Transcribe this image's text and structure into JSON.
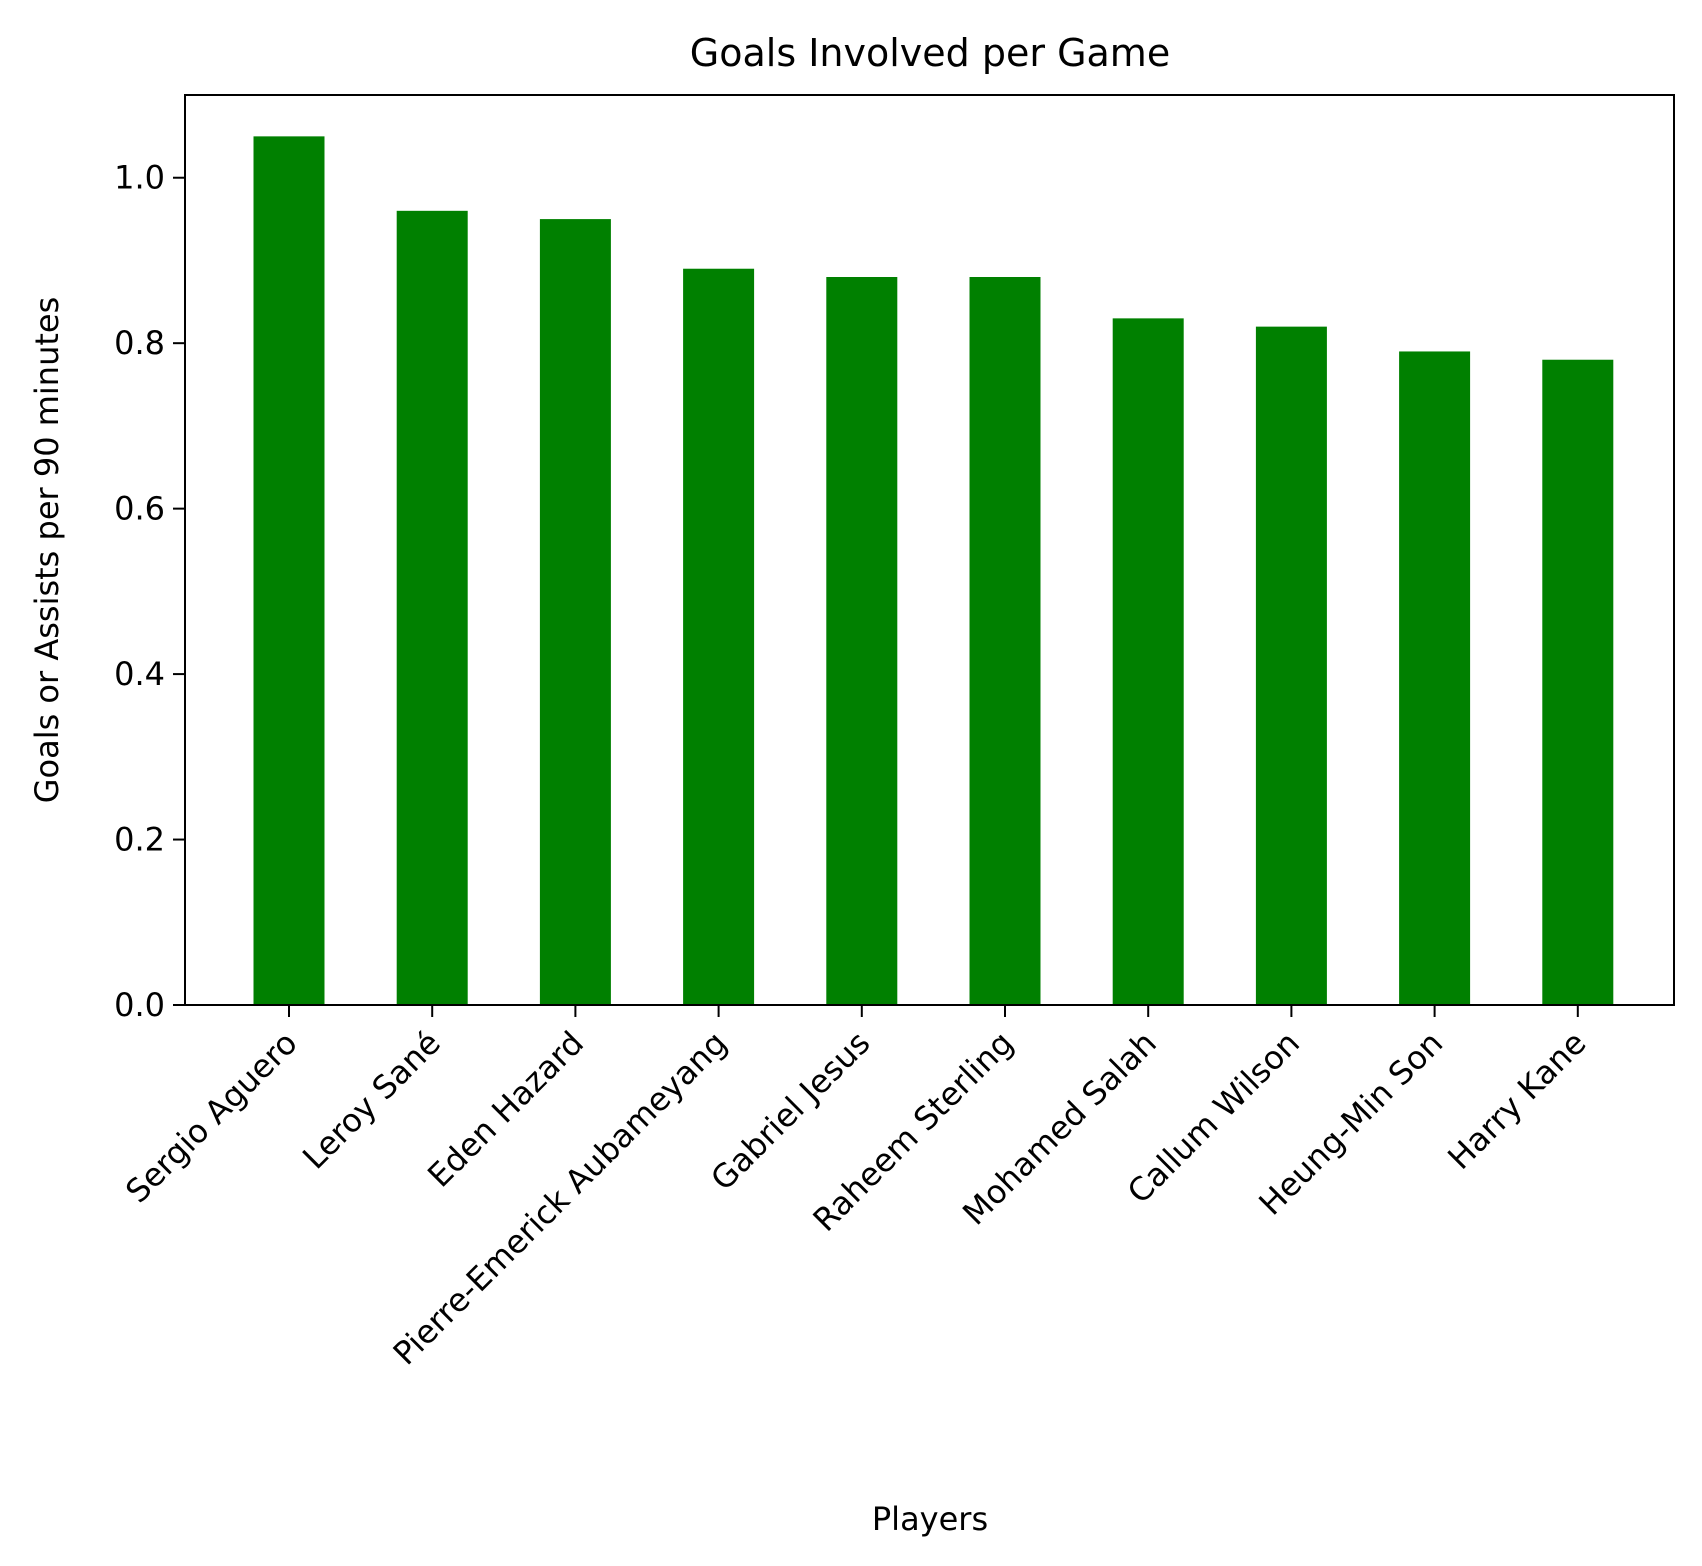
{
  "chart_data": {
    "type": "bar",
    "title": "Goals Involved per Game",
    "xlabel": "Players",
    "ylabel": "Goals or Assists per 90 minutes",
    "categories": [
      "Sergio Aguero",
      "Leroy Sané",
      "Eden Hazard",
      "Pierre-Emerick Aubameyang",
      "Gabriel Jesus",
      "Raheem Sterling",
      "Mohamed Salah",
      "Callum Wilson",
      "Heung-Min Son",
      "Harry Kane"
    ],
    "values": [
      1.05,
      0.96,
      0.95,
      0.89,
      0.88,
      0.88,
      0.83,
      0.82,
      0.79,
      0.78
    ],
    "ylim": [
      0,
      1.1
    ],
    "yticks": [
      0.0,
      0.2,
      0.4,
      0.6,
      0.8,
      1.0
    ],
    "ytick_labels": [
      "0.0",
      "0.2",
      "0.4",
      "0.6",
      "0.8",
      "1.0"
    ],
    "bar_color": "#008000",
    "grid": false,
    "legend": "none"
  }
}
